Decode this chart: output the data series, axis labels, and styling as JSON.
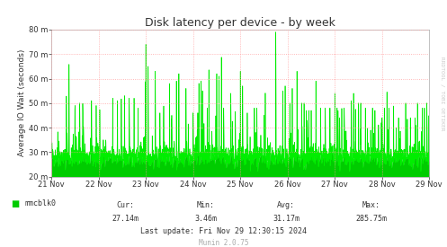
{
  "title": "Disk latency per device - by week",
  "ylabel": "Average IO Wait (seconds)",
  "bg_color": "#ffffff",
  "plot_bg_color": "#ffffff",
  "grid_color": "#ff9999",
  "line_color": "#00ee00",
  "fill_color": "#00cc00",
  "ylim": [
    0.02,
    0.08
  ],
  "yticks": [
    0.02,
    0.03,
    0.04,
    0.05,
    0.06,
    0.07,
    0.08
  ],
  "ytick_labels": [
    "20 m",
    "30 m",
    "40 m",
    "50 m",
    "60 m",
    "70 m",
    "80 m"
  ],
  "xtick_labels": [
    "21 Nov",
    "22 Nov",
    "23 Nov",
    "24 Nov",
    "25 Nov",
    "26 Nov",
    "27 Nov",
    "28 Nov",
    "29 Nov"
  ],
  "legend_label": "mmcblk0",
  "legend_color": "#00cc00",
  "cur_label": "Cur:",
  "cur_val": "27.14m",
  "min_label": "Min:",
  "min_val": "3.46m",
  "avg_label": "Avg:",
  "avg_val": "31.17m",
  "max_label": "Max:",
  "max_val": "285.75m",
  "last_update": "Last update: Fri Nov 29 12:30:15 2024",
  "munin_label": "Munin 2.0.75",
  "watermark": "RRDTOOL / TOBI OETIKER",
  "title_color": "#333333",
  "text_color": "#333333",
  "watermark_color": "#cccccc",
  "munin_color": "#aaaaaa",
  "spine_color": "#aaaaaa"
}
